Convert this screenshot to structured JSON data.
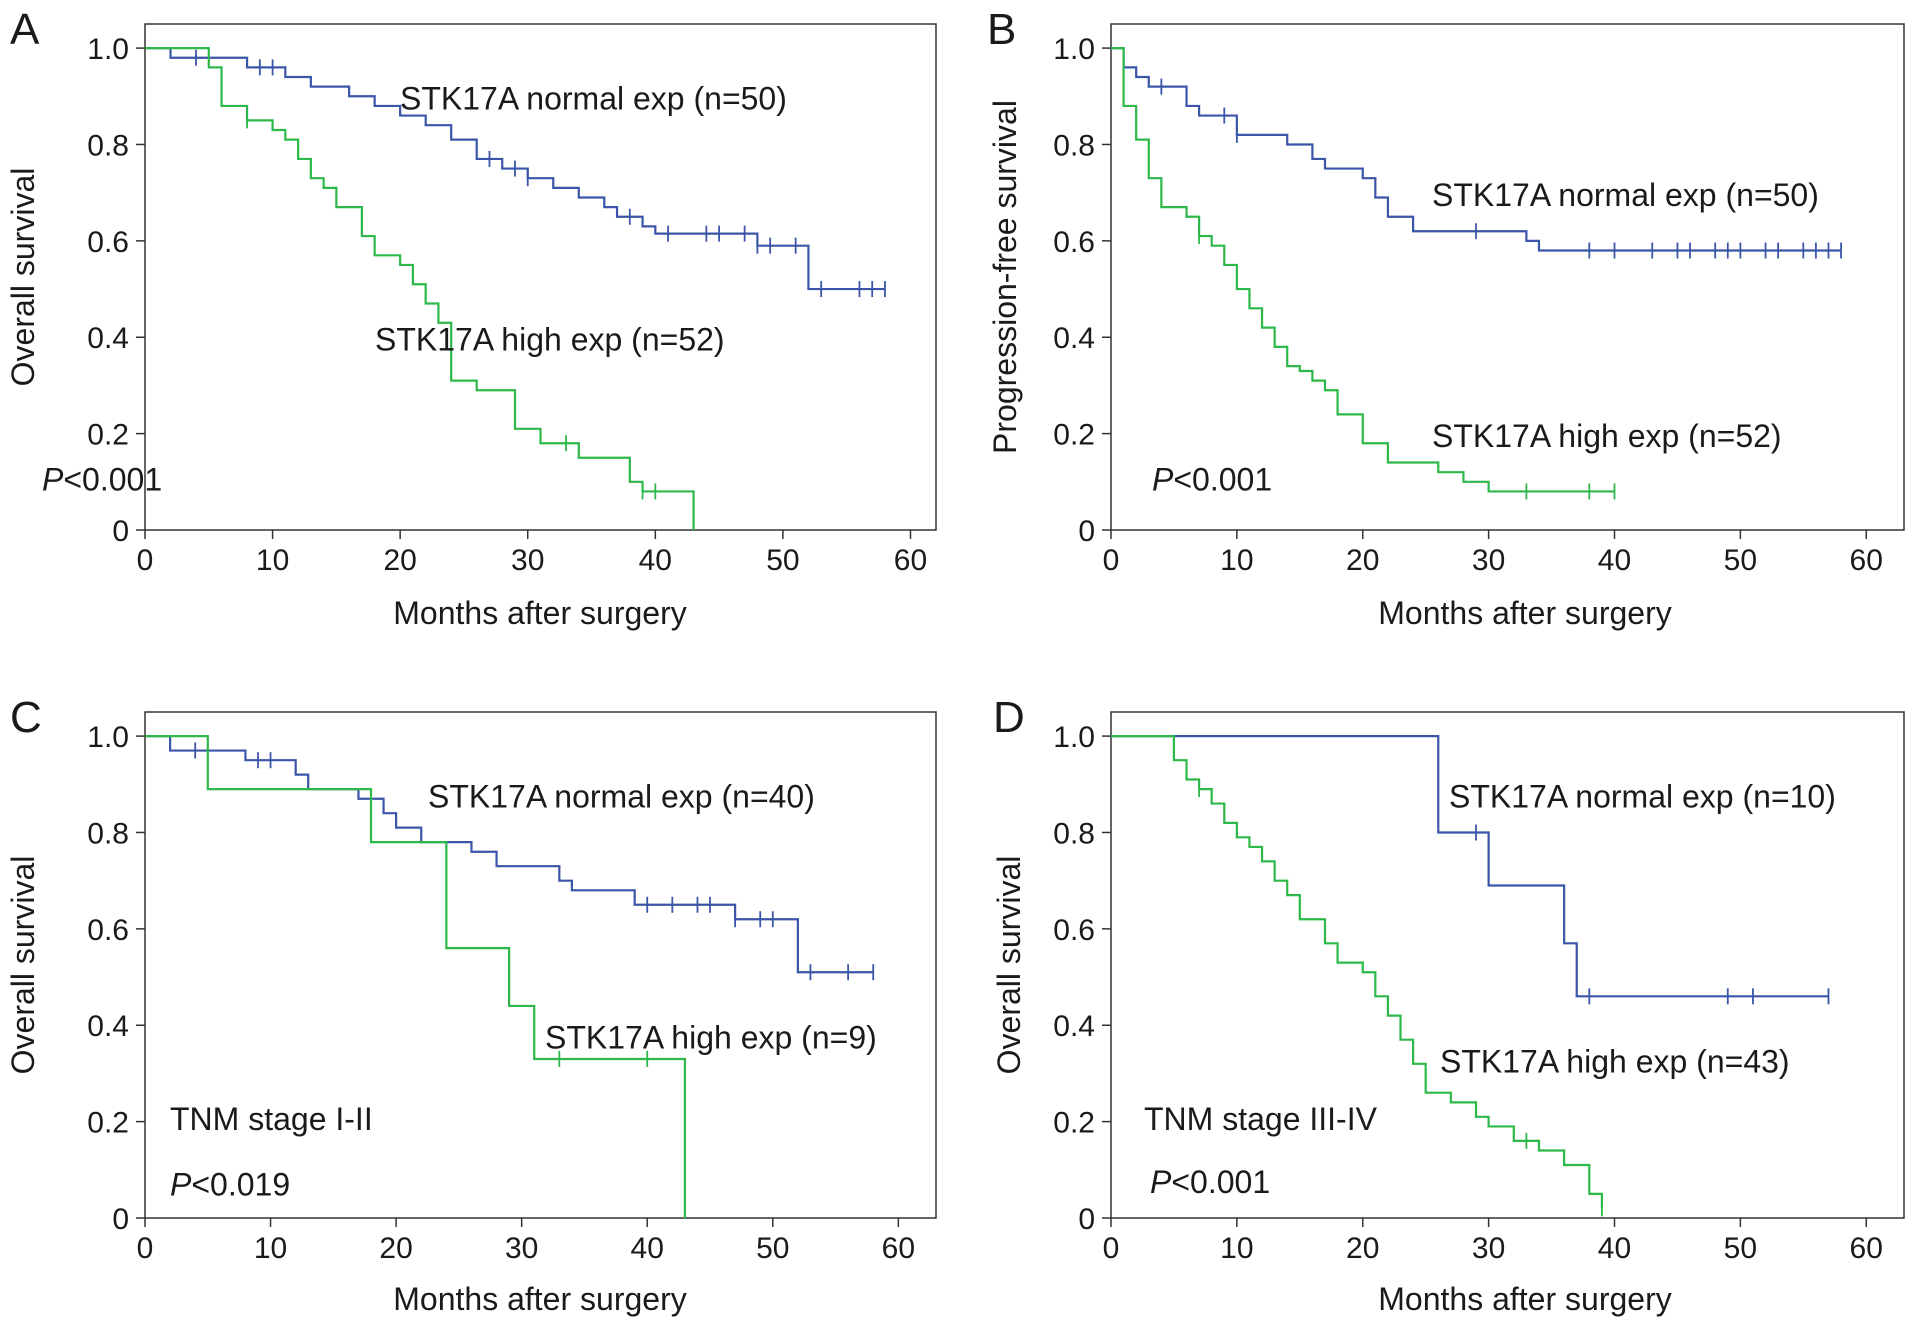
{
  "figure": {
    "colors": {
      "normal": "#3B55A8",
      "high": "#2DB84A",
      "axis": "#333333",
      "text": "#1a1a1a"
    }
  },
  "chart_data": [
    {
      "id": "A",
      "type": "line",
      "title": "",
      "panel_label": "A",
      "xlabel": "Months after surgery",
      "ylabel": "Overall survival",
      "xlim": [
        0,
        62
      ],
      "ylim": [
        0,
        1.05
      ],
      "xticks": [
        0,
        10,
        20,
        30,
        40,
        50,
        60
      ],
      "yticks": [
        0,
        0.2,
        0.4,
        0.6,
        0.8,
        1.0
      ],
      "ytick_labels": [
        "0",
        "0.2",
        "0.4",
        "0.6",
        "0.8",
        "1.0"
      ],
      "grid": false,
      "annotations": [
        {
          "id": "p",
          "italic": "P",
          "text": "<0.001"
        }
      ],
      "series": [
        {
          "name": "STK17A normal exp (n=50)",
          "color_key": "normal",
          "steps": [
            [
              0,
              1.0
            ],
            [
              2,
              0.98
            ],
            [
              8,
              0.96
            ],
            [
              11,
              0.94
            ],
            [
              13,
              0.92
            ],
            [
              16,
              0.9
            ],
            [
              18,
              0.88
            ],
            [
              20,
              0.86
            ],
            [
              22,
              0.84
            ],
            [
              24,
              0.81
            ],
            [
              26,
              0.77
            ],
            [
              28,
              0.75
            ],
            [
              30,
              0.73
            ],
            [
              32,
              0.71
            ],
            [
              34,
              0.69
            ],
            [
              36,
              0.67
            ],
            [
              37,
              0.65
            ],
            [
              39,
              0.63
            ],
            [
              40,
              0.615
            ],
            [
              48,
              0.59
            ],
            [
              52,
              0.5
            ],
            [
              58,
              0.5
            ]
          ],
          "censor": [
            4,
            9,
            10,
            27,
            29,
            30,
            38,
            41,
            44,
            45,
            47,
            48,
            49,
            51,
            53,
            56,
            57,
            58
          ]
        },
        {
          "name": "STK17A high exp (n=52)",
          "color_key": "high",
          "steps": [
            [
              0,
              1.0
            ],
            [
              5,
              0.96
            ],
            [
              6,
              0.88
            ],
            [
              7,
              0.88
            ],
            [
              8,
              0.85
            ],
            [
              10,
              0.83
            ],
            [
              11,
              0.81
            ],
            [
              12,
              0.77
            ],
            [
              13,
              0.73
            ],
            [
              14,
              0.71
            ],
            [
              15,
              0.67
            ],
            [
              17,
              0.61
            ],
            [
              18,
              0.57
            ],
            [
              20,
              0.55
            ],
            [
              21,
              0.51
            ],
            [
              22,
              0.47
            ],
            [
              23,
              0.43
            ],
            [
              24,
              0.31
            ],
            [
              26,
              0.29
            ],
            [
              29,
              0.21
            ],
            [
              31,
              0.18
            ],
            [
              34,
              0.15
            ],
            [
              38,
              0.1
            ],
            [
              39,
              0.08
            ],
            [
              43,
              0.0
            ]
          ],
          "censor": [
            8,
            33,
            39,
            40
          ]
        }
      ],
      "labels": [
        {
          "series": 0,
          "text": "STK17A normal exp (n=50)"
        },
        {
          "series": 1,
          "text": "STK17A high exp (n=52)"
        }
      ]
    },
    {
      "id": "B",
      "type": "line",
      "title": "",
      "panel_label": "B",
      "xlabel": "Months after surgery",
      "ylabel": "Progression-free survival",
      "xlim": [
        0,
        63
      ],
      "ylim": [
        0,
        1.05
      ],
      "xticks": [
        0,
        10,
        20,
        30,
        40,
        50,
        60
      ],
      "yticks": [
        0,
        0.2,
        0.4,
        0.6,
        0.8,
        1.0
      ],
      "ytick_labels": [
        "0",
        "0.2",
        "0.4",
        "0.6",
        "0.8",
        "1.0"
      ],
      "grid": false,
      "annotations": [
        {
          "id": "p",
          "italic": "P",
          "text": "<0.001"
        }
      ],
      "series": [
        {
          "name": "STK17A normal exp (n=50)",
          "color_key": "normal",
          "steps": [
            [
              0,
              1.0
            ],
            [
              1,
              0.96
            ],
            [
              2,
              0.94
            ],
            [
              3,
              0.92
            ],
            [
              6,
              0.88
            ],
            [
              7,
              0.86
            ],
            [
              10,
              0.82
            ],
            [
              14,
              0.8
            ],
            [
              16,
              0.77
            ],
            [
              17,
              0.75
            ],
            [
              20,
              0.73
            ],
            [
              21,
              0.69
            ],
            [
              22,
              0.65
            ],
            [
              24,
              0.62
            ],
            [
              33,
              0.6
            ],
            [
              34,
              0.58
            ],
            [
              58,
              0.58
            ]
          ],
          "censor": [
            4,
            9,
            10,
            29,
            38,
            40,
            43,
            45,
            46,
            48,
            49,
            50,
            52,
            53,
            55,
            56,
            57,
            58
          ]
        },
        {
          "name": "STK17A high exp (n=52)",
          "color_key": "high",
          "steps": [
            [
              0,
              1.0
            ],
            [
              1,
              0.88
            ],
            [
              2,
              0.81
            ],
            [
              3,
              0.73
            ],
            [
              4,
              0.67
            ],
            [
              6,
              0.65
            ],
            [
              7,
              0.61
            ],
            [
              8,
              0.59
            ],
            [
              9,
              0.55
            ],
            [
              10,
              0.5
            ],
            [
              11,
              0.46
            ],
            [
              12,
              0.42
            ],
            [
              13,
              0.38
            ],
            [
              14,
              0.34
            ],
            [
              15,
              0.33
            ],
            [
              16,
              0.31
            ],
            [
              17,
              0.29
            ],
            [
              18,
              0.24
            ],
            [
              20,
              0.18
            ],
            [
              22,
              0.14
            ],
            [
              26,
              0.12
            ],
            [
              28,
              0.1
            ],
            [
              30,
              0.08
            ],
            [
              40,
              0.08
            ]
          ],
          "censor": [
            7,
            33,
            38,
            40
          ]
        }
      ],
      "labels": [
        {
          "series": 0,
          "text": "STK17A normal exp (n=50)"
        },
        {
          "series": 1,
          "text": "STK17A high exp (n=52)"
        }
      ]
    },
    {
      "id": "C",
      "type": "line",
      "title": "",
      "panel_label": "C",
      "xlabel": "Months after surgery",
      "ylabel": "Overall survival",
      "xlim": [
        0,
        63
      ],
      "ylim": [
        0,
        1.05
      ],
      "xticks": [
        0,
        10,
        20,
        30,
        40,
        50,
        60
      ],
      "yticks": [
        0,
        0.2,
        0.4,
        0.6,
        0.8,
        1.0
      ],
      "ytick_labels": [
        "0",
        "0.2",
        "0.4",
        "0.6",
        "0.8",
        "1.0"
      ],
      "grid": false,
      "annotations": [
        {
          "id": "stage",
          "italic": "",
          "text": "TNM stage I-II"
        },
        {
          "id": "p",
          "italic": "P",
          "text": "<0.019"
        }
      ],
      "series": [
        {
          "name": "STK17A normal exp (n=40)",
          "color_key": "normal",
          "steps": [
            [
              0,
              1.0
            ],
            [
              2,
              0.97
            ],
            [
              8,
              0.95
            ],
            [
              12,
              0.92
            ],
            [
              13,
              0.89
            ],
            [
              17,
              0.87
            ],
            [
              19,
              0.84
            ],
            [
              20,
              0.81
            ],
            [
              22,
              0.78
            ],
            [
              26,
              0.76
            ],
            [
              28,
              0.73
            ],
            [
              33,
              0.7
            ],
            [
              34,
              0.68
            ],
            [
              39,
              0.65
            ],
            [
              47,
              0.62
            ],
            [
              52,
              0.51
            ],
            [
              58,
              0.51
            ]
          ],
          "censor": [
            4,
            9,
            10,
            40,
            42,
            44,
            45,
            47,
            49,
            50,
            53,
            56,
            58
          ]
        },
        {
          "name": "STK17A high exp (n=9)",
          "color_key": "high",
          "steps": [
            [
              0,
              1.0
            ],
            [
              5,
              0.89
            ],
            [
              18,
              0.78
            ],
            [
              24,
              0.56
            ],
            [
              29,
              0.44
            ],
            [
              31,
              0.33
            ],
            [
              43,
              0.0
            ]
          ],
          "censor": [
            33,
            40
          ]
        }
      ],
      "labels": [
        {
          "series": 0,
          "text": "STK17A normal exp (n=40)"
        },
        {
          "series": 1,
          "text": "STK17A high exp (n=9)"
        }
      ]
    },
    {
      "id": "D",
      "type": "line",
      "title": "",
      "panel_label": "D",
      "xlabel": "Months after surgery",
      "ylabel": "Overall survival",
      "xlim": [
        0,
        63
      ],
      "ylim": [
        0,
        1.05
      ],
      "xticks": [
        0,
        10,
        20,
        30,
        40,
        50,
        60
      ],
      "yticks": [
        0,
        0.2,
        0.4,
        0.6,
        0.8,
        1.0
      ],
      "ytick_labels": [
        "0",
        "0.2",
        "0.4",
        "0.6",
        "0.8",
        "1.0"
      ],
      "grid": false,
      "annotations": [
        {
          "id": "stage",
          "italic": "",
          "text": "TNM stage III-IV"
        },
        {
          "id": "p",
          "italic": "P",
          "text": "<0.001"
        }
      ],
      "series": [
        {
          "name": "STK17A normal exp (n=10)",
          "color_key": "normal",
          "steps": [
            [
              0,
              1.0
            ],
            [
              26,
              0.8
            ],
            [
              30,
              0.69
            ],
            [
              36,
              0.57
            ],
            [
              37,
              0.46
            ],
            [
              57,
              0.46
            ]
          ],
          "censor": [
            29,
            38,
            49,
            51,
            57
          ]
        },
        {
          "name": "STK17A high exp (n=43)",
          "color_key": "high",
          "steps": [
            [
              0,
              1.0
            ],
            [
              5,
              0.95
            ],
            [
              6,
              0.91
            ],
            [
              7,
              0.89
            ],
            [
              8,
              0.86
            ],
            [
              9,
              0.82
            ],
            [
              10,
              0.79
            ],
            [
              11,
              0.77
            ],
            [
              12,
              0.74
            ],
            [
              13,
              0.7
            ],
            [
              14,
              0.67
            ],
            [
              15,
              0.62
            ],
            [
              17,
              0.57
            ],
            [
              18,
              0.53
            ],
            [
              20,
              0.51
            ],
            [
              21,
              0.46
            ],
            [
              22,
              0.42
            ],
            [
              23,
              0.37
            ],
            [
              24,
              0.32
            ],
            [
              25,
              0.26
            ],
            [
              27,
              0.24
            ],
            [
              29,
              0.21
            ],
            [
              30,
              0.19
            ],
            [
              32,
              0.16
            ],
            [
              34,
              0.14
            ],
            [
              36,
              0.11
            ],
            [
              38,
              0.05
            ],
            [
              39,
              0.02
            ]
          ],
          "censor": [
            7,
            33,
            39
          ]
        }
      ],
      "labels": [
        {
          "series": 0,
          "text": "STK17A normal exp (n=10)"
        },
        {
          "series": 1,
          "text": "STK17A high exp (n=43)"
        }
      ]
    }
  ]
}
